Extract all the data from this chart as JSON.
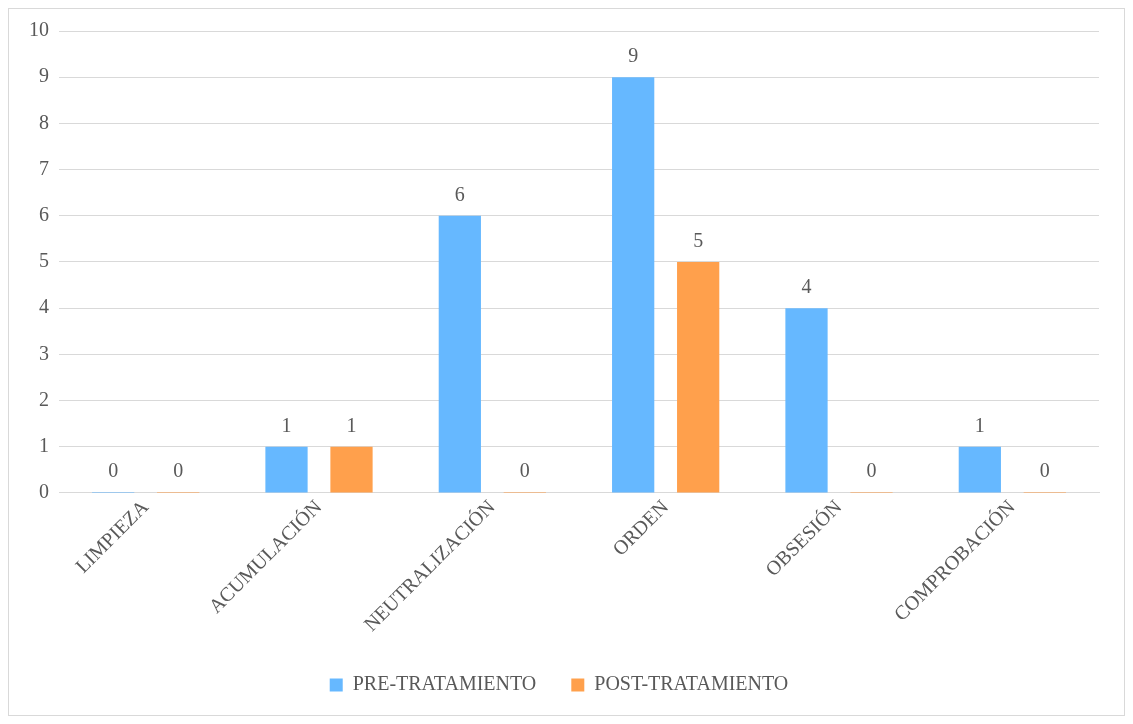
{
  "chart_data": {
    "type": "bar",
    "categories": [
      "LIMPIEZA",
      "ACUMULACIÓN",
      "NEUTRALIZACIÓN",
      "ORDEN",
      "OBSESIÓN",
      "COMPROBACIÓN"
    ],
    "series": [
      {
        "name": "PRE-TRATAMIENTO",
        "color": "#66b8ff",
        "values": [
          0,
          1,
          6,
          9,
          4,
          1
        ]
      },
      {
        "name": "POST-TRATAMIENTO",
        "color": "#ffa04c",
        "values": [
          0,
          1,
          0,
          5,
          0,
          0
        ]
      }
    ],
    "ylim": [
      0,
      10
    ],
    "yticks": [
      0,
      1,
      2,
      3,
      4,
      5,
      6,
      7,
      8,
      9,
      10
    ],
    "grid": "y",
    "legend": "bottom",
    "data_labels": true
  }
}
